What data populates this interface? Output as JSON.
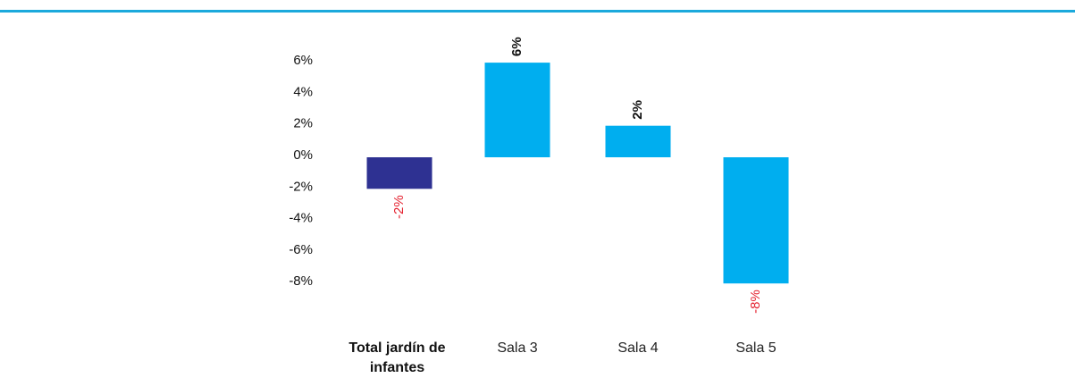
{
  "chart_data": {
    "type": "bar",
    "categories": [
      "Total jardín de infantes",
      "Sala 3",
      "Sala 4",
      "Sala 5"
    ],
    "values": [
      -2,
      6,
      2,
      -8
    ],
    "value_labels": [
      "-2%",
      "6%",
      "2%",
      "-8%"
    ],
    "colors": [
      "#2e3192",
      "#00aeef",
      "#00aeef",
      "#00aeef"
    ],
    "label_color": "#111111",
    "negative_label_color": "#e4202e",
    "ylim": [
      -10,
      8
    ],
    "yticks": [
      {
        "value": 6,
        "label": "6%"
      },
      {
        "value": 4,
        "label": "4%"
      },
      {
        "value": 2,
        "label": "2%"
      },
      {
        "value": 0,
        "label": "0%"
      },
      {
        "value": -2,
        "label": "-2%"
      },
      {
        "value": -4,
        "label": "-4%"
      },
      {
        "value": -6,
        "label": "-6%"
      },
      {
        "value": -8,
        "label": "-8%"
      }
    ],
    "grid": false
  }
}
